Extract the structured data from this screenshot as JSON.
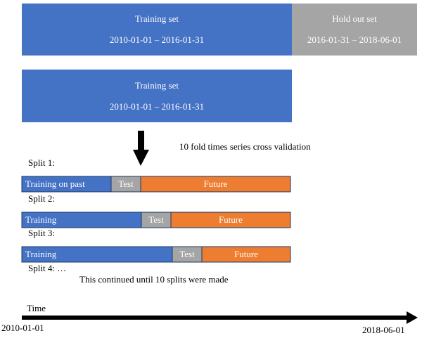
{
  "top": {
    "training": {
      "label": "Training set",
      "range": "2010-01-01 – 2016-01-31"
    },
    "holdout": {
      "label": "Hold out set",
      "range": "2016-01-31 – 2018-06-01"
    }
  },
  "second": {
    "label": "Training set",
    "range": "2010-01-01 – 2016-01-31"
  },
  "caption": "10 fold times series cross validation",
  "splits": [
    {
      "label": "Split 1:",
      "training": "Training on past",
      "test": "Test",
      "future": "Future"
    },
    {
      "label": "Split 2:",
      "training": "Training",
      "test": "Test",
      "future": "Future"
    },
    {
      "label": "Split 3:",
      "training": "Training",
      "test": "Test",
      "future": "Future"
    }
  ],
  "more": "Split 4: …",
  "note": "This continued until 10 splits were made",
  "timeline": {
    "label": "Time",
    "start": "2010-01-01",
    "end": "2018-06-01"
  }
}
